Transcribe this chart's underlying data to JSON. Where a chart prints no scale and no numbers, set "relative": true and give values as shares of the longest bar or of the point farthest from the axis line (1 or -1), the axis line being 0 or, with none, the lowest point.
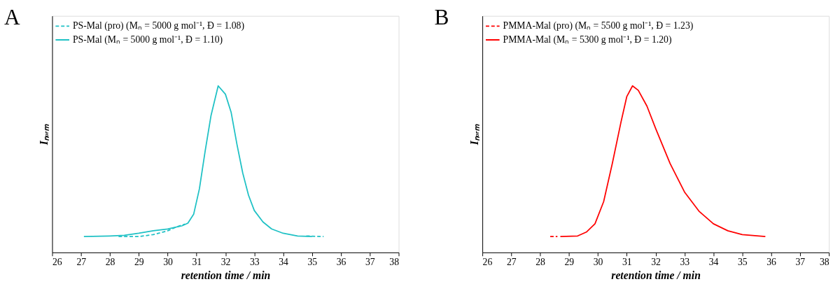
{
  "chart_data": [
    {
      "type": "line",
      "title": "A",
      "xlabel": "retention time / min",
      "ylabel": "Iₙₒᵣₘ",
      "relative": true,
      "xlim": [
        26,
        38
      ],
      "xticks": [
        26,
        27,
        28,
        29,
        30,
        31,
        32,
        33,
        34,
        35,
        36,
        37,
        38
      ],
      "grid": false,
      "legend": "top left",
      "marker": "none",
      "series": [
        {
          "name": "PS-Mal (pro) (Mₙ = 5000 g mol⁻¹, Đ = 1.08)",
          "color": "#1fc1c5",
          "line_style": "dashed",
          "x": [
            28.3,
            29.0,
            29.5,
            30.0,
            30.3,
            30.6,
            30.8,
            34.8,
            35.4
          ],
          "values": [
            0.095,
            0.095,
            0.107,
            0.13,
            0.153,
            0.17,
            null,
            0.099,
            0.095
          ]
        },
        {
          "name": "PS-Mal (Mₙ = 5000 g mol⁻¹, Đ = 1.10)",
          "color": "#1fc1c5",
          "line_style": "solid",
          "x": [
            27.1,
            28.0,
            28.5,
            29.0,
            29.5,
            30.0,
            30.5,
            30.7,
            30.9,
            31.1,
            31.3,
            31.5,
            31.75,
            32.0,
            32.2,
            32.4,
            32.6,
            32.8,
            33.0,
            33.3,
            33.6,
            34.0,
            34.5,
            35.0
          ],
          "values": [
            0.095,
            0.099,
            0.103,
            0.115,
            0.13,
            0.141,
            0.16,
            0.176,
            0.229,
            0.382,
            0.61,
            0.82,
            1.0,
            0.95,
            0.84,
            0.649,
            0.477,
            0.344,
            0.252,
            0.183,
            0.141,
            0.115,
            0.099,
            0.095
          ]
        }
      ]
    },
    {
      "type": "line",
      "title": "B",
      "xlabel": "retention time / min",
      "ylabel": "Iₙₒᵣₘ",
      "relative": true,
      "xlim": [
        26,
        38
      ],
      "xticks": [
        26,
        27,
        28,
        29,
        30,
        31,
        32,
        33,
        34,
        35,
        36,
        37,
        38
      ],
      "grid": false,
      "legend": "top left",
      "marker": "none",
      "series": [
        {
          "name": "PMMA-Mal (pro) (Mₙ = 5500 g mol⁻¹, Đ = 1.23)",
          "color": "#ff0000",
          "line_style": "dashed",
          "x": [
            28.35,
            28.6
          ],
          "values": [
            0.095,
            0.095
          ]
        },
        {
          "name": "PMMA-Mal (Mₙ = 5300 g mol⁻¹, Đ = 1.20)",
          "color": "#ff0000",
          "line_style": "solid",
          "x": [
            28.7,
            29.3,
            29.6,
            29.9,
            30.2,
            30.5,
            30.8,
            31.0,
            31.2,
            31.4,
            31.7,
            32.0,
            32.5,
            33.0,
            33.5,
            34.0,
            34.5,
            35.0,
            35.8
          ],
          "values": [
            0.095,
            0.099,
            0.122,
            0.172,
            0.305,
            0.534,
            0.782,
            0.935,
            1.0,
            0.973,
            0.878,
            0.744,
            0.534,
            0.363,
            0.248,
            0.172,
            0.13,
            0.107,
            0.095
          ]
        }
      ]
    }
  ]
}
